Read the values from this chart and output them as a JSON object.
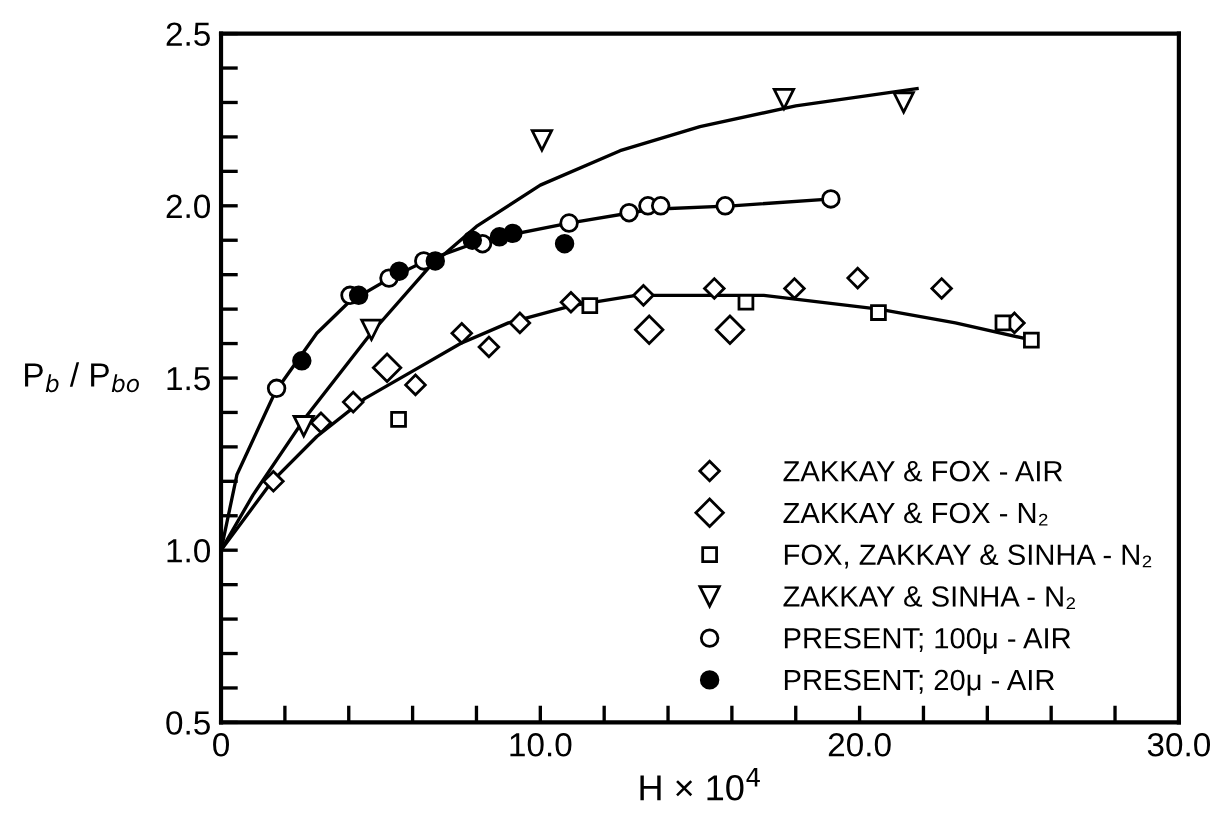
{
  "chart_data": {
    "type": "scatter",
    "xlabel": "H × 10$^{4}$",
    "ylabel": "P$_{b}$ / P$_{bo}$",
    "xlim": [
      0,
      30
    ],
    "ylim": [
      0.5,
      2.5
    ],
    "xticks": [
      {
        "value": 0,
        "label": "0"
      },
      {
        "value": 2,
        "label": null
      },
      {
        "value": 4,
        "label": null
      },
      {
        "value": 6,
        "label": null
      },
      {
        "value": 8,
        "label": null
      },
      {
        "value": 10,
        "label": "10.0"
      },
      {
        "value": 12,
        "label": null
      },
      {
        "value": 14,
        "label": null
      },
      {
        "value": 16,
        "label": null
      },
      {
        "value": 18,
        "label": null
      },
      {
        "value": 20,
        "label": "20.0"
      },
      {
        "value": 22,
        "label": null
      },
      {
        "value": 24,
        "label": null
      },
      {
        "value": 26,
        "label": null
      },
      {
        "value": 28,
        "label": null
      },
      {
        "value": 30,
        "label": "30.0"
      }
    ],
    "yticks": [
      0.5,
      {
        "value": 0.6,
        "label": null
      },
      {
        "value": 0.7,
        "label": null
      },
      {
        "value": 0.8,
        "label": null
      },
      {
        "value": 0.9,
        "label": null
      },
      {
        "value": 1.0,
        "label": "1.0"
      },
      {
        "value": 1.1,
        "label": null
      },
      {
        "value": 1.2,
        "label": null
      },
      {
        "value": 1.3,
        "label": null
      },
      {
        "value": 1.4,
        "label": null
      },
      1.5,
      {
        "value": 1.6,
        "label": null
      },
      {
        "value": 1.7,
        "label": null
      },
      {
        "value": 1.8,
        "label": null
      },
      {
        "value": 1.9,
        "label": null
      },
      {
        "value": 2.0,
        "label": "2.0"
      },
      {
        "value": 2.1,
        "label": null
      },
      {
        "value": 2.2,
        "label": null
      },
      {
        "value": 2.3,
        "label": null
      },
      {
        "value": 2.4,
        "label": null
      },
      2.5
    ],
    "grid": false,
    "legend": "bottom right",
    "series": [
      {
        "name": "ZAKKAY & FOX - AIR",
        "marker": "diamond",
        "color": "#000000",
        "x": [
          1.64,
          3.13,
          4.14,
          6.09,
          7.54,
          8.39,
          9.36,
          10.96,
          13.23,
          15.45,
          17.96,
          19.94,
          22.57,
          24.85
        ],
        "values": [
          1.2,
          1.37,
          1.43,
          1.48,
          1.63,
          1.59,
          1.66,
          1.72,
          1.74,
          1.76,
          1.76,
          1.79,
          1.76,
          1.66
        ]
      },
      {
        "name": "ZAKKAY & FOX - N₂",
        "marker": "diamond",
        "color": "#000000",
        "x": [
          5.2,
          13.41,
          15.94
        ],
        "values": [
          1.53,
          1.64,
          1.64
        ]
      },
      {
        "name": "FOX, ZAKKAY & SINHA - N₂",
        "marker": "square",
        "color": "#000000",
        "x": [
          5.56,
          11.55,
          16.44,
          20.59,
          24.49,
          25.38
        ],
        "values": [
          1.38,
          1.71,
          1.72,
          1.69,
          1.66,
          1.61
        ]
      },
      {
        "name": "ZAKKAY & SINHA - N₂",
        "marker": "triangle",
        "color": "#000000",
        "x": [
          2.59,
          4.71,
          10.05,
          17.63,
          21.38
        ],
        "values": [
          1.36,
          1.64,
          2.19,
          2.31,
          2.3
        ]
      },
      {
        "name": "PRESENT; 100μ - AIR",
        "marker": "circle",
        "color": "#000000",
        "x": [
          1.74,
          4.04,
          5.26,
          6.35,
          8.19,
          10.9,
          12.78,
          13.37,
          13.77,
          15.79,
          19.1
        ],
        "values": [
          1.47,
          1.74,
          1.79,
          1.84,
          1.89,
          1.95,
          1.98,
          2.0,
          2.0,
          2.0,
          2.02
        ]
      },
      {
        "name": "PRESENT; 20μ - AIR",
        "marker": "circle",
        "color": "#000000",
        "x": [
          2.53,
          4.31,
          5.58,
          6.71,
          7.87,
          8.72,
          9.14,
          10.76
        ],
        "values": [
          1.55,
          1.74,
          1.81,
          1.84,
          1.9,
          1.91,
          1.92,
          1.89
        ]
      },
      {
        "type": "line",
        "marker": "none",
        "line_style": "solid",
        "color": "#000000",
        "x": [
          0,
          1,
          2.6,
          4.7,
          6.5,
          8,
          10,
          12.5,
          15,
          18,
          21.8
        ],
        "values": [
          1.0,
          1.16,
          1.38,
          1.63,
          1.82,
          1.94,
          2.06,
          2.16,
          2.23,
          2.29,
          2.34
        ]
      },
      {
        "type": "line",
        "marker": "none",
        "line_style": "solid",
        "color": "#000000",
        "x": [
          0,
          0.5,
          1.7,
          3,
          4,
          5.3,
          6.4,
          8.2,
          10.9,
          13.5,
          16,
          19.1
        ],
        "values": [
          1.0,
          1.22,
          1.46,
          1.63,
          1.72,
          1.79,
          1.84,
          1.9,
          1.95,
          1.99,
          2.0,
          2.02
        ]
      },
      {
        "type": "line",
        "marker": "none",
        "line_style": "solid",
        "color": "#000000",
        "x": [
          0,
          1.6,
          3,
          4.5,
          6,
          7.5,
          9,
          11,
          13,
          17,
          20.6,
          23,
          25.4
        ],
        "values": [
          1.0,
          1.2,
          1.33,
          1.44,
          1.52,
          1.6,
          1.66,
          1.71,
          1.74,
          1.74,
          1.7,
          1.66,
          1.61
        ]
      }
    ]
  }
}
